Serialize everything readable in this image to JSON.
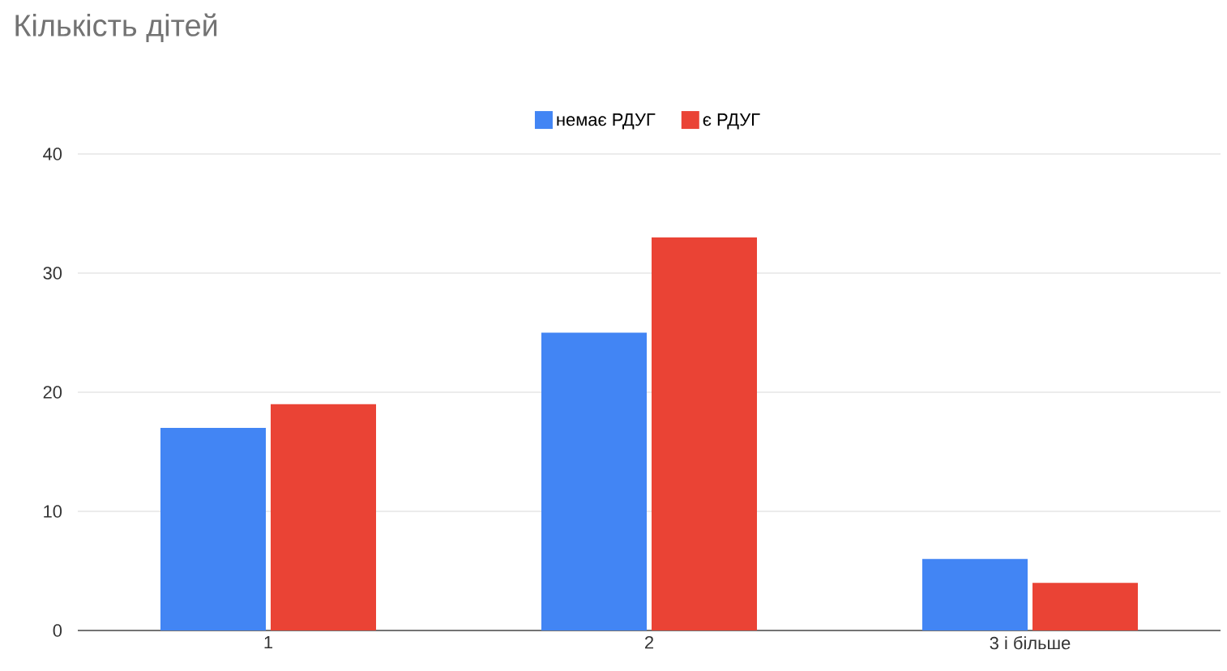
{
  "chart_data": {
    "type": "bar",
    "title": "Кількість дітей",
    "categories": [
      "1",
      "2",
      "3 і більше"
    ],
    "series": [
      {
        "name": "немає РДУГ",
        "color": "#4285f4",
        "values": [
          17,
          25,
          6
        ]
      },
      {
        "name": "є РДУГ",
        "color": "#ea4335",
        "values": [
          19,
          33,
          4
        ]
      }
    ],
    "ylim": [
      0,
      40
    ],
    "yticks": [
      0,
      10,
      20,
      30,
      40
    ],
    "grid": "y",
    "legend": "top"
  }
}
